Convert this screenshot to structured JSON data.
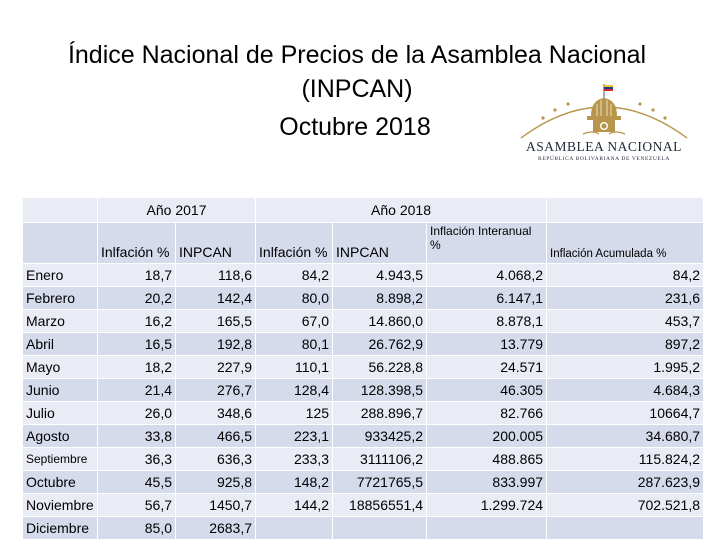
{
  "title": {
    "line1": "Índice Nacional de Precios de la Asamblea Nacional",
    "line2": "(INPCAN)",
    "line3": "Octubre 2018"
  },
  "logo": {
    "name": "ASAMBLEA NACIONAL",
    "subtitle": "REPÚBLICA BOLIVARIANA DE VENEZUELA",
    "colors": {
      "gold": "#b8954a",
      "navy": "#1f2a3a",
      "flag_yellow": "#f2c230",
      "flag_blue": "#1b3f95",
      "flag_red": "#d22630"
    }
  },
  "table": {
    "group_headers": {
      "y2017": "Año 2017",
      "y2018": "Año 2018"
    },
    "columns": {
      "inf2017": "Inlfación %",
      "inpcan2017": "INPCAN",
      "inf2018": "Inlfación %",
      "inpcan2018": "INPCAN",
      "interanual": "Inflación Interanual %",
      "acumulada": "Inflación Acumulada %"
    },
    "rows": [
      {
        "month": "Enero",
        "inf2017": "18,7",
        "inpcan2017": "118,6",
        "inf2018": "84,2",
        "inpcan2018": "4.943,5",
        "interanual": "4.068,2",
        "acumulada": "84,2"
      },
      {
        "month": "Febrero",
        "inf2017": "20,2",
        "inpcan2017": "142,4",
        "inf2018": "80,0",
        "inpcan2018": "8.898,2",
        "interanual": "6.147,1",
        "acumulada": "231,6"
      },
      {
        "month": "Marzo",
        "inf2017": "16,2",
        "inpcan2017": "165,5",
        "inf2018": "67,0",
        "inpcan2018": "14.860,0",
        "interanual": "8.878,1",
        "acumulada": "453,7"
      },
      {
        "month": "Abril",
        "inf2017": "16,5",
        "inpcan2017": "192,8",
        "inf2018": "80,1",
        "inpcan2018": "26.762,9",
        "interanual": "13.779",
        "acumulada": "897,2"
      },
      {
        "month": "Mayo",
        "inf2017": "18,2",
        "inpcan2017": "227,9",
        "inf2018": "110,1",
        "inpcan2018": "56.228,8",
        "interanual": "24.571",
        "acumulada": "1.995,2"
      },
      {
        "month": "Junio",
        "inf2017": "21,4",
        "inpcan2017": "276,7",
        "inf2018": "128,4",
        "inpcan2018": "128.398,5",
        "interanual": "46.305",
        "acumulada": "4.684,3"
      },
      {
        "month": "Julio",
        "inf2017": "26,0",
        "inpcan2017": "348,6",
        "inf2018": "125",
        "inpcan2018": "288.896,7",
        "interanual": "82.766",
        "acumulada": "10664,7"
      },
      {
        "month": "Agosto",
        "inf2017": "33,8",
        "inpcan2017": "466,5",
        "inf2018": "223,1",
        "inpcan2018": "933425,2",
        "interanual": "200.005",
        "acumulada": "34.680,7"
      },
      {
        "month": "Septiembre",
        "inf2017": "36,3",
        "inpcan2017": "636,3",
        "inf2018": "233,3",
        "inpcan2018": "3111106,2",
        "interanual": "488.865",
        "acumulada": "115.824,2"
      },
      {
        "month": "Octubre",
        "inf2017": "45,5",
        "inpcan2017": "925,8",
        "inf2018": "148,2",
        "inpcan2018": "7721765,5",
        "interanual": "833.997",
        "acumulada": "287.623,9"
      },
      {
        "month": "Noviembre",
        "inf2017": "56,7",
        "inpcan2017": "1450,7",
        "inf2018": "144,2",
        "inpcan2018": "18856551,4",
        "interanual": "1.299.724",
        "acumulada": "702.521,8"
      },
      {
        "month": "Diciembre",
        "inf2017": "85,0",
        "inpcan2017": "2683,7",
        "inf2018": "",
        "inpcan2018": "",
        "interanual": "",
        "acumulada": ""
      }
    ]
  }
}
